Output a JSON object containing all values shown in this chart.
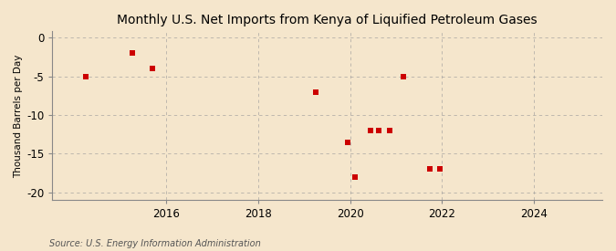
{
  "title": "Monthly U.S. Net Imports from Kenya of Liquified Petroleum Gases",
  "ylabel": "Thousand Barrels per Day",
  "source": "Source: U.S. Energy Information Administration",
  "background_color": "#f5e6cc",
  "plot_background_color": "#f5e6cc",
  "grid_color": "#999999",
  "point_color": "#cc0000",
  "xlim": [
    2013.5,
    2025.5
  ],
  "ylim": [
    -21,
    0.8
  ],
  "xticks": [
    2016,
    2018,
    2020,
    2022,
    2024
  ],
  "yticks": [
    0,
    -5,
    -10,
    -15,
    -20
  ],
  "data_x": [
    2014.25,
    2015.25,
    2015.7,
    2019.25,
    2019.95,
    2020.1,
    2020.45,
    2020.62,
    2020.87,
    2021.17,
    2021.75,
    2021.95
  ],
  "data_y": [
    -5.0,
    -2.0,
    -4.0,
    -7.0,
    -13.5,
    -18.0,
    -12.0,
    -12.0,
    -12.0,
    -5.0,
    -17.0,
    -17.0
  ],
  "marker_size": 18
}
